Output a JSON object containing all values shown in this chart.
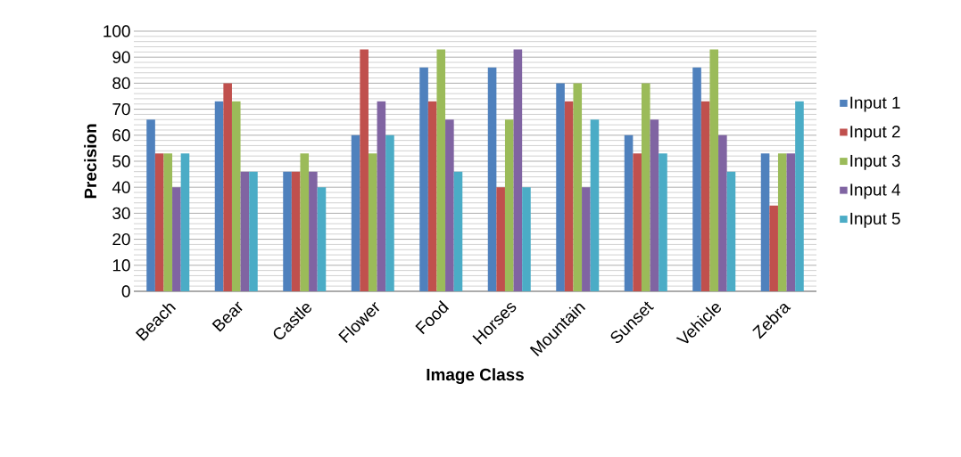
{
  "chart_data": {
    "type": "bar",
    "xlabel": "Image Class",
    "ylabel": "Precision",
    "categories": [
      "Beach",
      "Bear",
      "Castle",
      "Flower",
      "Food",
      "Horses",
      "Mountain",
      "Sunset",
      "Vehicle",
      "Zebra"
    ],
    "series": [
      {
        "name": "Input 1",
        "color": "#4f81bd",
        "values": [
          66,
          73,
          46,
          60,
          86,
          86,
          80,
          60,
          86,
          53
        ]
      },
      {
        "name": "Input 2",
        "color": "#c0504d",
        "values": [
          53,
          80,
          46,
          93,
          73,
          40,
          73,
          53,
          73,
          33
        ]
      },
      {
        "name": "Input 3",
        "color": "#9bbb59",
        "values": [
          53,
          73,
          53,
          53,
          93,
          66,
          80,
          80,
          93,
          53
        ]
      },
      {
        "name": "Input 4",
        "color": "#8064a2",
        "values": [
          40,
          46,
          46,
          73,
          66,
          93,
          40,
          66,
          60,
          53
        ]
      },
      {
        "name": "Input 5",
        "color": "#4bacc6",
        "values": [
          53,
          46,
          40,
          60,
          46,
          40,
          66,
          53,
          46,
          73
        ]
      }
    ],
    "ylim": [
      0,
      100
    ],
    "yticks": [
      0,
      10,
      20,
      30,
      40,
      50,
      60,
      70,
      80,
      90,
      100
    ],
    "grid": "y",
    "legend": "right"
  }
}
